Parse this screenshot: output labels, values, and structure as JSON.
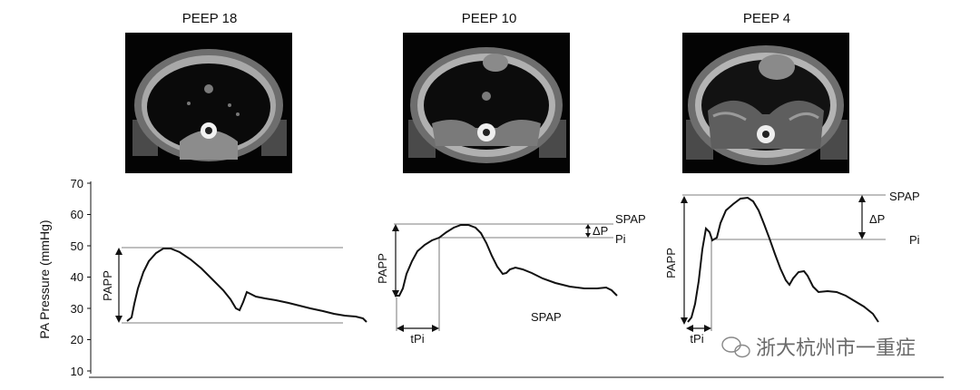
{
  "panels": [
    {
      "title": "PEEP 18"
    },
    {
      "title": "PEEP 10"
    },
    {
      "title": "PEEP 4"
    }
  ],
  "axis": {
    "ylabel": "PA Pressure (mmHg)",
    "ticks": [
      "70",
      "60",
      "50",
      "40",
      "30",
      "20",
      "10"
    ]
  },
  "annotations": {
    "papp": "PAPP",
    "spap": "SPAP",
    "delta_p": "ΔP",
    "pi": "Pi",
    "tpi": "tPi"
  },
  "watermark": {
    "text": "浙大杭州市一重症",
    "icon": "wechat-icon"
  },
  "colors": {
    "trace": "#111111",
    "guide": "#555555",
    "ct_background": "#050505"
  }
}
